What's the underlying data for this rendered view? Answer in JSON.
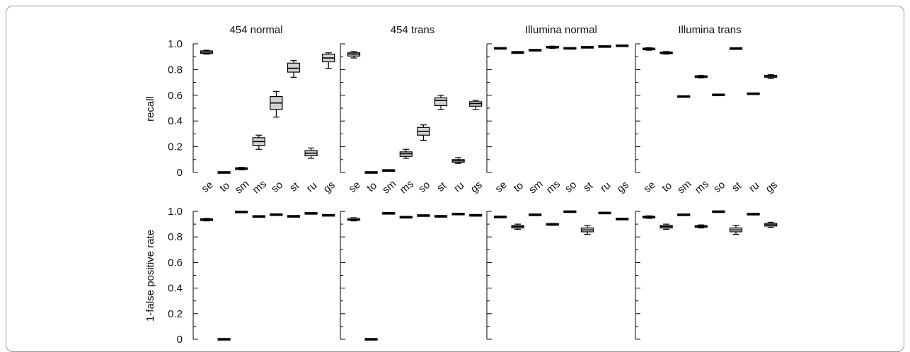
{
  "chart_data": {
    "type": "boxplot",
    "panel_titles": [
      "454 normal",
      "454 trans",
      "Illumina normal",
      "Illumina trans"
    ],
    "row_ylabels": [
      "recall",
      "1-false positive rate"
    ],
    "categories": [
      "se",
      "to",
      "sm",
      "ms",
      "so",
      "st",
      "ru",
      "gs"
    ],
    "yticks": [
      "1.0",
      "0.8",
      "0.6",
      "0.4",
      "0.2",
      "0"
    ],
    "ylim": [
      0,
      1
    ],
    "colors": {
      "box_fill": "#d3d3d3",
      "line": "#000000"
    },
    "panels": [
      {
        "row": 0,
        "col": 0,
        "boxes": [
          {
            "min": 0.92,
            "q1": 0.925,
            "med": 0.935,
            "q3": 0.945,
            "max": 0.95
          },
          {
            "min": 0.0,
            "q1": 0.0,
            "med": 0.0,
            "q3": 0.0,
            "max": 0.0
          },
          {
            "min": 0.02,
            "q1": 0.025,
            "med": 0.03,
            "q3": 0.035,
            "max": 0.04
          },
          {
            "min": 0.18,
            "q1": 0.21,
            "med": 0.24,
            "q3": 0.27,
            "max": 0.29
          },
          {
            "min": 0.43,
            "q1": 0.49,
            "med": 0.54,
            "q3": 0.59,
            "max": 0.63
          },
          {
            "min": 0.74,
            "q1": 0.78,
            "med": 0.81,
            "q3": 0.85,
            "max": 0.87
          },
          {
            "min": 0.11,
            "q1": 0.13,
            "med": 0.15,
            "q3": 0.17,
            "max": 0.19
          },
          {
            "min": 0.81,
            "q1": 0.86,
            "med": 0.89,
            "q3": 0.92,
            "max": 0.93
          }
        ]
      },
      {
        "row": 0,
        "col": 1,
        "boxes": [
          {
            "min": 0.89,
            "q1": 0.905,
            "med": 0.92,
            "q3": 0.93,
            "max": 0.94
          },
          {
            "min": 0.0,
            "q1": 0.0,
            "med": 0.0,
            "q3": 0.0,
            "max": 0.0
          },
          {
            "min": 0.01,
            "q1": 0.013,
            "med": 0.015,
            "q3": 0.018,
            "max": 0.02
          },
          {
            "min": 0.11,
            "q1": 0.125,
            "med": 0.145,
            "q3": 0.16,
            "max": 0.18
          },
          {
            "min": 0.25,
            "q1": 0.29,
            "med": 0.32,
            "q3": 0.35,
            "max": 0.37
          },
          {
            "min": 0.49,
            "q1": 0.52,
            "med": 0.56,
            "q3": 0.58,
            "max": 0.6
          },
          {
            "min": 0.07,
            "q1": 0.08,
            "med": 0.09,
            "q3": 0.1,
            "max": 0.115
          },
          {
            "min": 0.49,
            "q1": 0.515,
            "med": 0.535,
            "q3": 0.55,
            "max": 0.56
          }
        ]
      },
      {
        "row": 0,
        "col": 2,
        "boxes": [
          {
            "min": 0.96,
            "q1": 0.963,
            "med": 0.965,
            "q3": 0.967,
            "max": 0.97
          },
          {
            "min": 0.925,
            "q1": 0.93,
            "med": 0.933,
            "q3": 0.936,
            "max": 0.94
          },
          {
            "min": 0.945,
            "q1": 0.948,
            "med": 0.95,
            "q3": 0.953,
            "max": 0.956
          },
          {
            "min": 0.965,
            "q1": 0.97,
            "med": 0.974,
            "q3": 0.978,
            "max": 0.982
          },
          {
            "min": 0.96,
            "q1": 0.963,
            "med": 0.965,
            "q3": 0.967,
            "max": 0.97
          },
          {
            "min": 0.971,
            "q1": 0.972,
            "med": 0.973,
            "q3": 0.974,
            "max": 0.975
          },
          {
            "min": 0.977,
            "q1": 0.978,
            "med": 0.979,
            "q3": 0.98,
            "max": 0.981
          },
          {
            "min": 0.98,
            "q1": 0.983,
            "med": 0.985,
            "q3": 0.987,
            "max": 0.99
          }
        ]
      },
      {
        "row": 0,
        "col": 3,
        "boxes": [
          {
            "min": 0.95,
            "q1": 0.955,
            "med": 0.96,
            "q3": 0.965,
            "max": 0.97
          },
          {
            "min": 0.92,
            "q1": 0.925,
            "med": 0.93,
            "q3": 0.935,
            "max": 0.94
          },
          {
            "min": 0.587,
            "q1": 0.588,
            "med": 0.59,
            "q3": 0.592,
            "max": 0.594
          },
          {
            "min": 0.735,
            "q1": 0.74,
            "med": 0.745,
            "q3": 0.75,
            "max": 0.755
          },
          {
            "min": 0.6,
            "q1": 0.601,
            "med": 0.603,
            "q3": 0.605,
            "max": 0.606
          },
          {
            "min": 0.96,
            "q1": 0.961,
            "med": 0.963,
            "q3": 0.965,
            "max": 0.966
          },
          {
            "min": 0.61,
            "q1": 0.611,
            "med": 0.612,
            "q3": 0.613,
            "max": 0.614
          },
          {
            "min": 0.73,
            "q1": 0.74,
            "med": 0.748,
            "q3": 0.755,
            "max": 0.76
          }
        ]
      },
      {
        "row": 1,
        "col": 0,
        "boxes": [
          {
            "min": 0.925,
            "q1": 0.93,
            "med": 0.935,
            "q3": 0.94,
            "max": 0.945
          },
          {
            "min": 0.0,
            "q1": 0.0,
            "med": 0.0,
            "q3": 0.0,
            "max": 0.0
          },
          {
            "min": 0.993,
            "q1": 0.994,
            "med": 0.995,
            "q3": 0.996,
            "max": 0.997
          },
          {
            "min": 0.955,
            "q1": 0.958,
            "med": 0.96,
            "q3": 0.962,
            "max": 0.965
          },
          {
            "min": 0.97,
            "q1": 0.972,
            "med": 0.974,
            "q3": 0.976,
            "max": 0.978
          },
          {
            "min": 0.955,
            "q1": 0.958,
            "med": 0.961,
            "q3": 0.964,
            "max": 0.967
          },
          {
            "min": 0.98,
            "q1": 0.982,
            "med": 0.984,
            "q3": 0.986,
            "max": 0.988
          },
          {
            "min": 0.965,
            "q1": 0.967,
            "med": 0.969,
            "q3": 0.971,
            "max": 0.973
          }
        ]
      },
      {
        "row": 1,
        "col": 1,
        "boxes": [
          {
            "min": 0.925,
            "q1": 0.93,
            "med": 0.935,
            "q3": 0.945,
            "max": 0.95
          },
          {
            "min": 0.0,
            "q1": 0.0,
            "med": 0.0,
            "q3": 0.0,
            "max": 0.0
          },
          {
            "min": 0.98,
            "q1": 0.982,
            "med": 0.985,
            "q3": 0.987,
            "max": 0.99
          },
          {
            "min": 0.95,
            "q1": 0.952,
            "med": 0.954,
            "q3": 0.956,
            "max": 0.958
          },
          {
            "min": 0.965,
            "q1": 0.966,
            "med": 0.967,
            "q3": 0.968,
            "max": 0.969
          },
          {
            "min": 0.955,
            "q1": 0.958,
            "med": 0.961,
            "q3": 0.964,
            "max": 0.967
          },
          {
            "min": 0.977,
            "q1": 0.978,
            "med": 0.979,
            "q3": 0.98,
            "max": 0.981
          },
          {
            "min": 0.962,
            "q1": 0.966,
            "med": 0.969,
            "q3": 0.972,
            "max": 0.975
          }
        ]
      },
      {
        "row": 1,
        "col": 2,
        "boxes": [
          {
            "min": 0.95,
            "q1": 0.953,
            "med": 0.956,
            "q3": 0.959,
            "max": 0.962
          },
          {
            "min": 0.86,
            "q1": 0.87,
            "med": 0.88,
            "q3": 0.89,
            "max": 0.9
          },
          {
            "min": 0.971,
            "q1": 0.972,
            "med": 0.973,
            "q3": 0.974,
            "max": 0.975
          },
          {
            "min": 0.89,
            "q1": 0.894,
            "med": 0.898,
            "q3": 0.902,
            "max": 0.906
          },
          {
            "min": 0.996,
            "q1": 0.997,
            "med": 0.997,
            "q3": 0.998,
            "max": 0.998
          },
          {
            "min": 0.82,
            "q1": 0.84,
            "med": 0.855,
            "q3": 0.87,
            "max": 0.89
          },
          {
            "min": 0.985,
            "q1": 0.986,
            "med": 0.987,
            "q3": 0.988,
            "max": 0.989
          },
          {
            "min": 0.936,
            "q1": 0.938,
            "med": 0.94,
            "q3": 0.942,
            "max": 0.944
          }
        ]
      },
      {
        "row": 1,
        "col": 3,
        "boxes": [
          {
            "min": 0.945,
            "q1": 0.95,
            "med": 0.955,
            "q3": 0.96,
            "max": 0.965
          },
          {
            "min": 0.86,
            "q1": 0.87,
            "med": 0.88,
            "q3": 0.89,
            "max": 0.9
          },
          {
            "min": 0.971,
            "q1": 0.972,
            "med": 0.973,
            "q3": 0.974,
            "max": 0.975
          },
          {
            "min": 0.87,
            "q1": 0.876,
            "med": 0.882,
            "q3": 0.888,
            "max": 0.894
          },
          {
            "min": 0.996,
            "q1": 0.997,
            "med": 0.997,
            "q3": 0.998,
            "max": 0.998
          },
          {
            "min": 0.82,
            "q1": 0.84,
            "med": 0.855,
            "q3": 0.87,
            "max": 0.89
          },
          {
            "min": 0.976,
            "q1": 0.977,
            "med": 0.978,
            "q3": 0.979,
            "max": 0.98
          },
          {
            "min": 0.875,
            "q1": 0.885,
            "med": 0.895,
            "q3": 0.905,
            "max": 0.915
          }
        ]
      }
    ]
  }
}
